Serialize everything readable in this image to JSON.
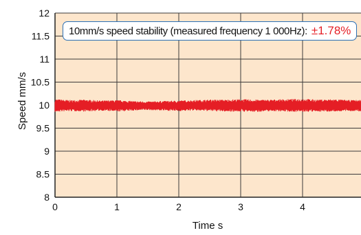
{
  "chart_data": {
    "type": "line",
    "xlabel": "Time s",
    "ylabel": "Speed mm/s",
    "xlim": [
      0,
      5
    ],
    "ylim": [
      8,
      12
    ],
    "x_ticks": [
      "0",
      "1",
      "2",
      "3",
      "4"
    ],
    "y_ticks": [
      "8",
      "8.5",
      "9",
      "9.5",
      "10",
      "10.5",
      "11",
      "11.5",
      "12"
    ],
    "grid": true,
    "annotation": {
      "text": "10mm/s speed stability (measured frequency 1 000Hz):",
      "value": "±1.78%"
    },
    "series": [
      {
        "x": [
          0,
          0.25,
          0.5,
          0.75,
          1.0,
          1.25,
          1.5,
          1.75,
          2.0,
          2.25,
          2.5,
          2.75,
          3.0,
          3.25,
          3.5,
          3.75,
          4.0,
          4.25,
          4.5,
          4.75,
          5.0
        ],
        "y_min": [
          9.85,
          9.87,
          9.86,
          9.88,
          9.86,
          9.88,
          9.89,
          9.88,
          9.87,
          9.88,
          9.87,
          9.86,
          9.86,
          9.85,
          9.87,
          9.86,
          9.85,
          9.86,
          9.86,
          9.87,
          9.86
        ],
        "y_max": [
          10.13,
          10.11,
          10.12,
          10.1,
          10.11,
          10.09,
          10.08,
          10.09,
          10.1,
          10.11,
          10.12,
          10.12,
          10.13,
          10.12,
          10.12,
          10.13,
          10.14,
          10.12,
          10.13,
          10.11,
          10.12
        ]
      }
    ],
    "colors": {
      "plot_background": "#fde6cc",
      "grid": "#3a3a3a",
      "series": "#e51e25",
      "annotation_border": "#2a6fb5",
      "annotation_value": "#e51e25"
    }
  }
}
